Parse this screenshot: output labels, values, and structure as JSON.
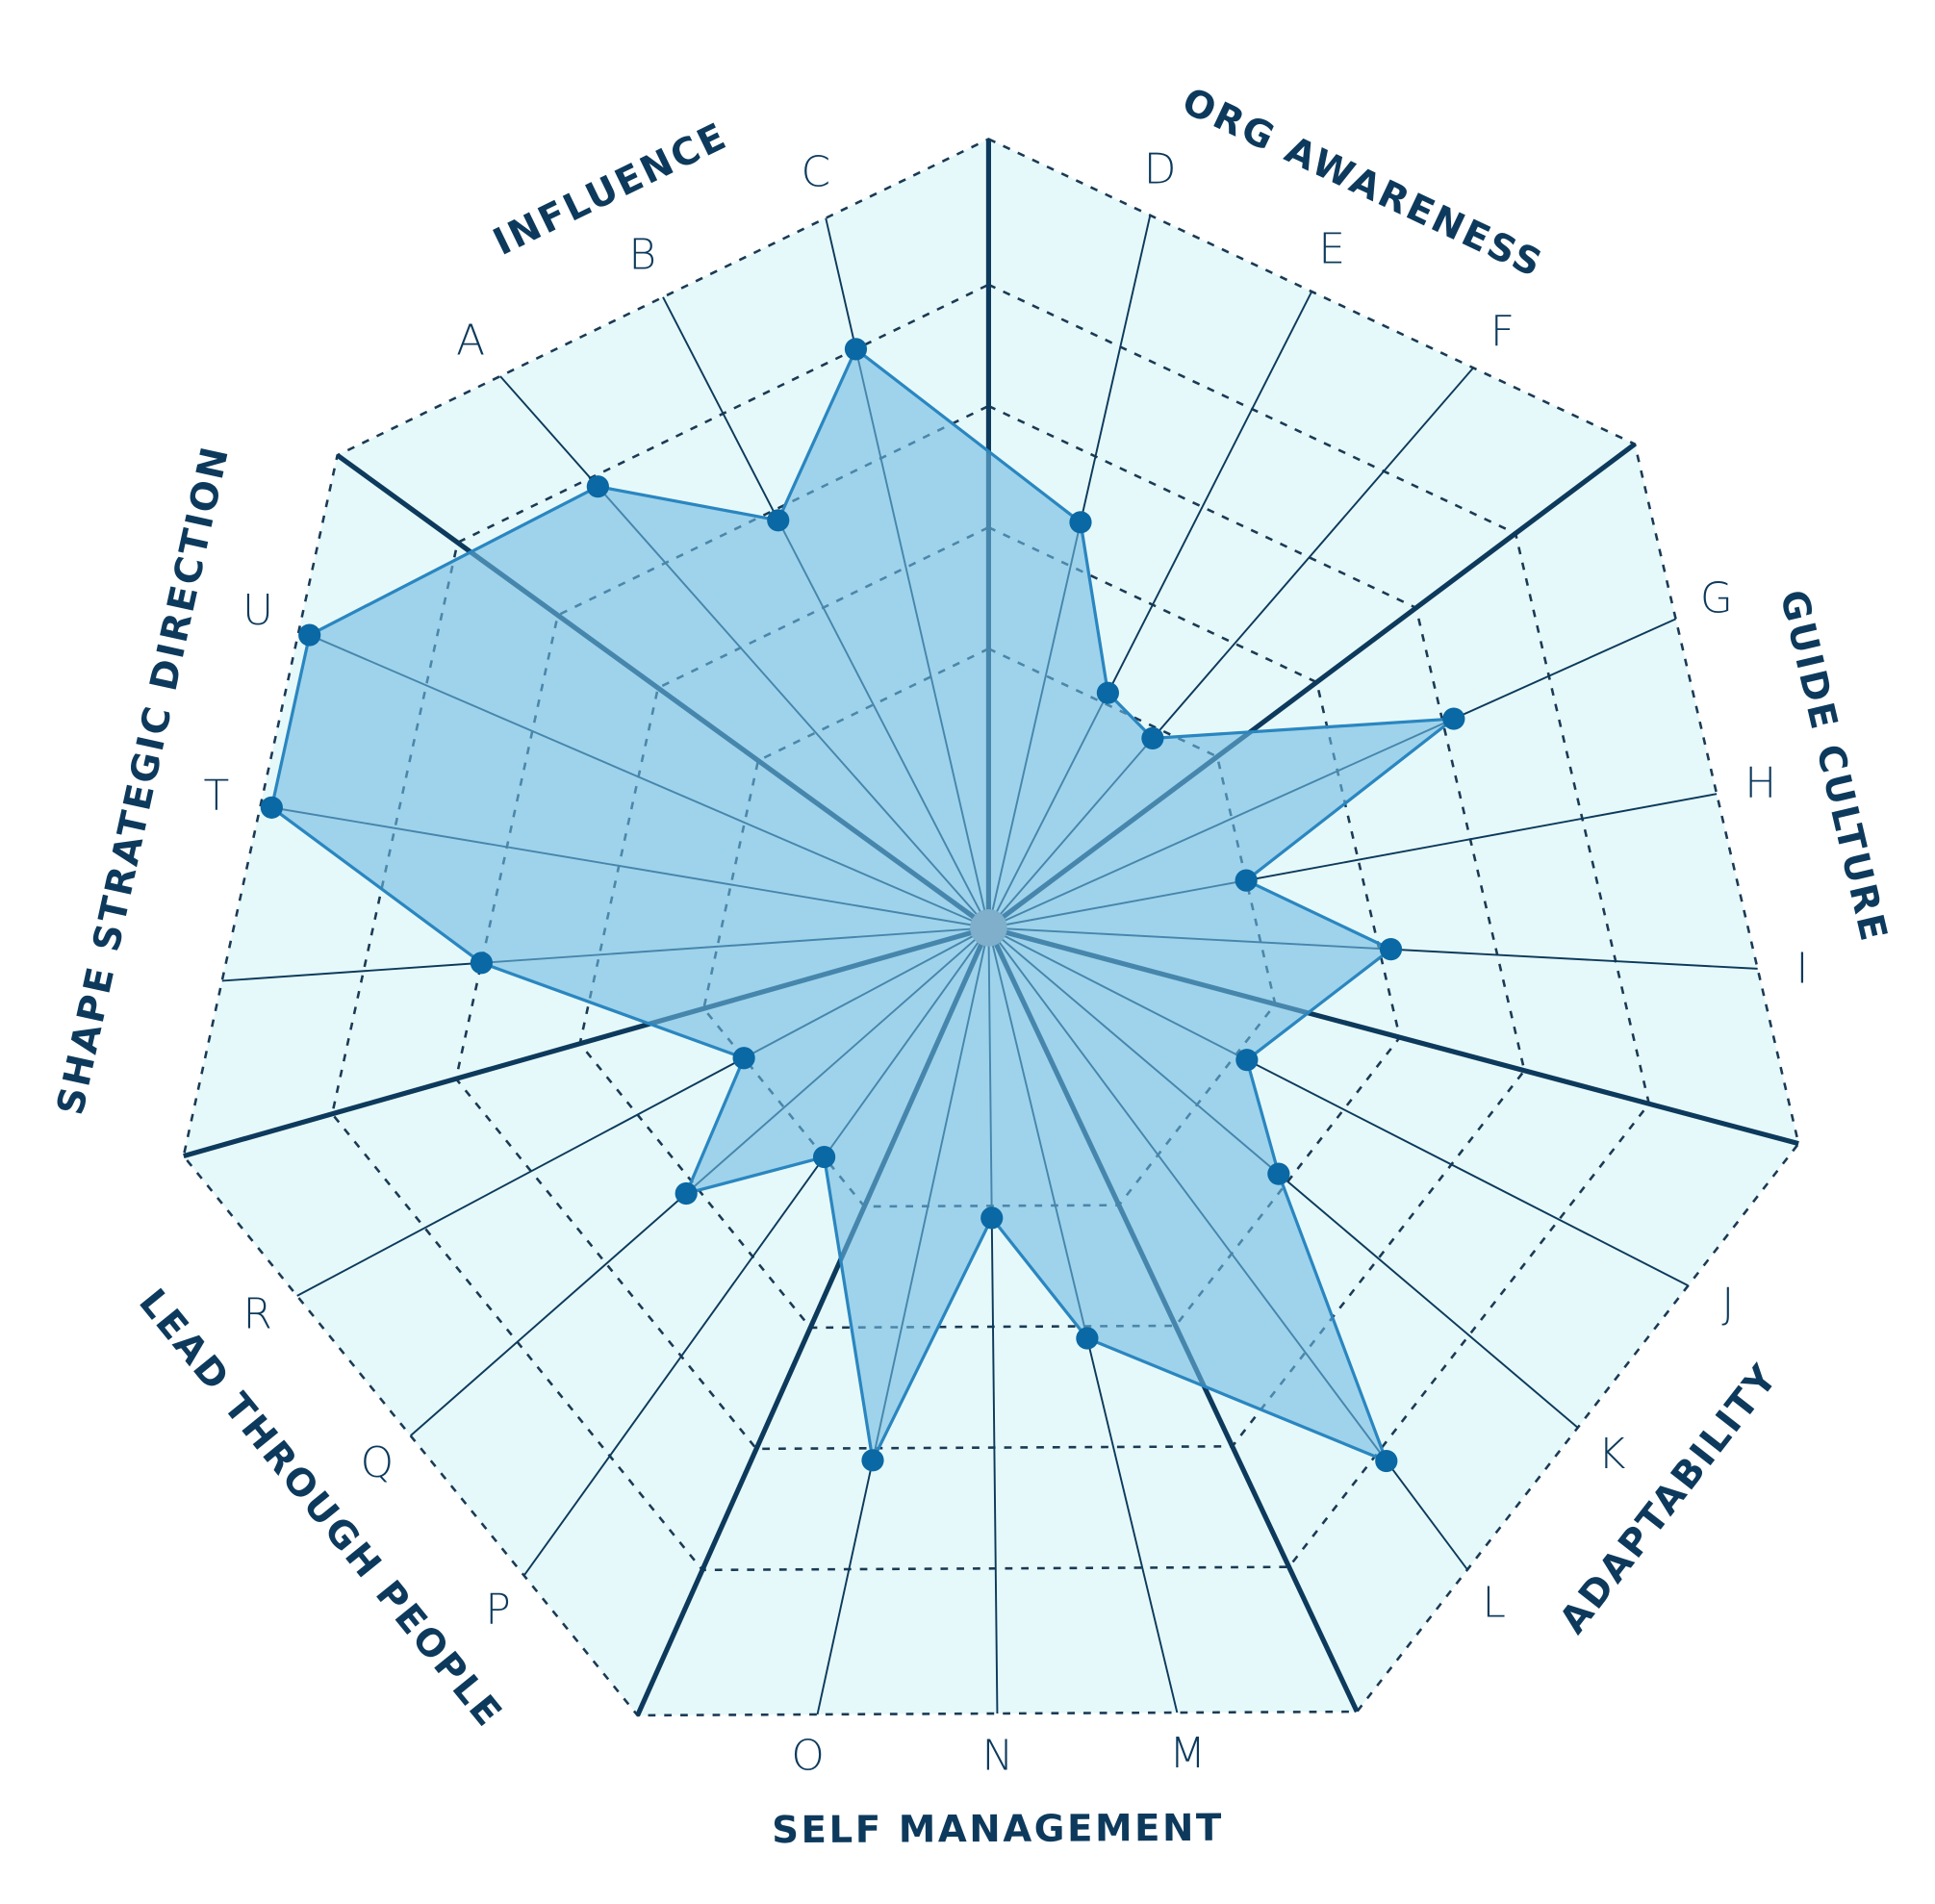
{
  "chart_data": {
    "type": "radar",
    "categories": [
      "A",
      "B",
      "C",
      "D",
      "E",
      "F",
      "G",
      "H",
      "I",
      "J",
      "K",
      "L",
      "M",
      "N",
      "O",
      "P",
      "Q",
      "R",
      null,
      "T",
      "U"
    ],
    "values": [
      5.2,
      4.2,
      5.3,
      3.7,
      2.4,
      2.2,
      4.4,
      2.3,
      3.4,
      2.4,
      3.2,
      5.4,
      3.4,
      2.4,
      4.4,
      2.3,
      3.4,
      2.3,
      4.3,
      6.4,
      6.4
    ],
    "groups": [
      "INFLUENCE",
      "ORG AWARENESS",
      "GUIDE CULTURE",
      "ADAPTABILITY",
      "SELF MANAGEMENT",
      "LEAD THROUGH PEOPLE",
      "SHAPE STRATEGIC DIRECTION"
    ],
    "rlim": [
      0,
      6.5
    ],
    "rticks": [
      2.3,
      3.3,
      4.3,
      5.3,
      6.5
    ],
    "color": "#2a86c0"
  }
}
